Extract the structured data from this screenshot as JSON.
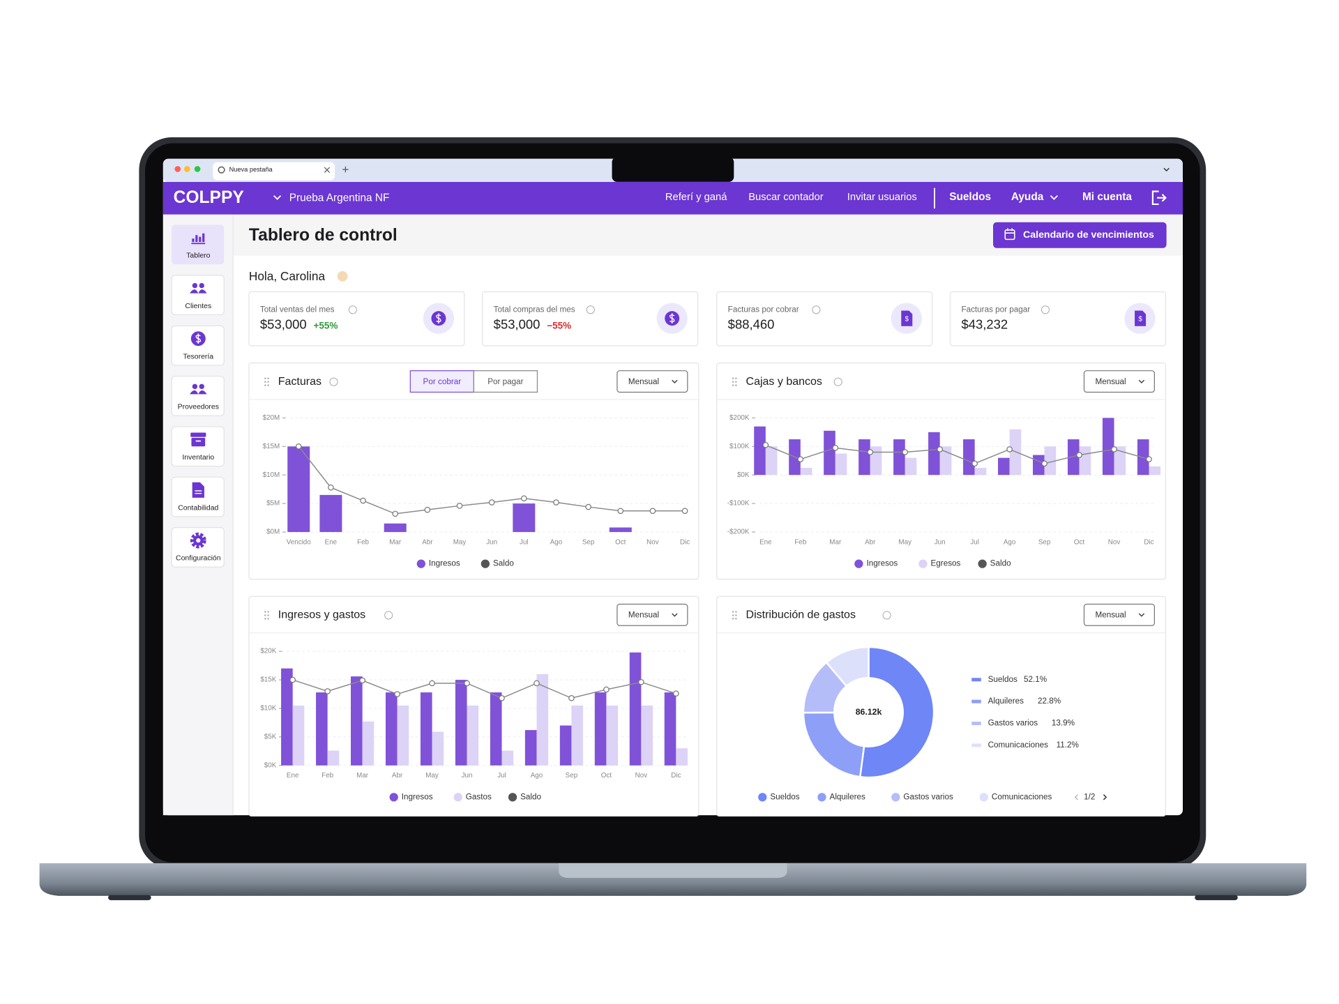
{
  "browser": {
    "tab": "Nueva pestaña"
  },
  "header": {
    "logo": "COLPPY",
    "company": "Prueba Argentina NF",
    "links": [
      "Referí y ganá",
      "Buscar contador",
      "Invitar usuarios"
    ],
    "sueldos": "Sueldos",
    "ayuda": "Ayuda",
    "account": "Mi cuenta"
  },
  "sidebar": [
    "Tablero",
    "Clientes",
    "Tesorería",
    "Proveedores",
    "Inventario",
    "Contabilidad",
    "Configuración"
  ],
  "page": {
    "title": "Tablero de control",
    "calendar_button": "Calendario de vencimientos",
    "greeting": "Hola, Carolina"
  },
  "kpis": [
    {
      "label": "Total ventas del mes",
      "value": "$53,000",
      "change": "+55%",
      "trend": "up"
    },
    {
      "label": "Total compras del mes",
      "value": "$53,000",
      "change": "−55%",
      "trend": "down"
    },
    {
      "label": "Facturas por cobrar",
      "value": "$88,460"
    },
    {
      "label": "Facturas por pagar",
      "value": "$43,232"
    }
  ],
  "chart_data": [
    {
      "type": "bar",
      "title": "Facturas",
      "tabs": [
        "Por cobrar",
        "Por pagar"
      ],
      "period": "Mensual",
      "categories": [
        "Vencido",
        "Ene",
        "Feb",
        "Mar",
        "Abr",
        "May",
        "Jun",
        "Jul",
        "Ago",
        "Sep",
        "Oct",
        "Nov",
        "Dic"
      ],
      "ylim": [
        0,
        20
      ],
      "yticks": [
        {
          "value": 0,
          "label": "$0M"
        },
        {
          "value": 5,
          "label": "$5M"
        },
        {
          "value": 10,
          "label": "$10M"
        },
        {
          "value": 15,
          "label": "$15M"
        },
        {
          "value": 20,
          "label": "$20M"
        }
      ],
      "grid": true,
      "series": [
        {
          "name": "Ingresos",
          "color": "#8052d8",
          "values": [
            15,
            6.5,
            0,
            1.5,
            0,
            0,
            0,
            5,
            0,
            0,
            0.8,
            0,
            0
          ]
        },
        {
          "name": "Saldo",
          "color": "#666666",
          "type": "line",
          "values": [
            15,
            7.8,
            5.5,
            3.2,
            3.9,
            4.6,
            5.2,
            5.9,
            5.2,
            4.4,
            3.7,
            3.7,
            3.7
          ]
        }
      ]
    },
    {
      "type": "bar",
      "title": "Cajas y bancos",
      "period": "Mensual",
      "categories": [
        "Ene",
        "Feb",
        "Mar",
        "Abr",
        "May",
        "Jun",
        "Jul",
        "Ago",
        "Sep",
        "Oct",
        "Nov",
        "Dic"
      ],
      "ylim": [
        -200,
        200
      ],
      "yticks": [
        {
          "value": -200,
          "label": "-$200K"
        },
        {
          "value": -100,
          "label": "-$100K"
        },
        {
          "value": 0,
          "label": "$0K"
        },
        {
          "value": 100,
          "label": "$100K"
        },
        {
          "value": 200,
          "label": "$200K"
        }
      ],
      "grid": true,
      "series": [
        {
          "name": "Ingresos",
          "color": "#8052d8",
          "values": [
            170,
            125,
            155,
            125,
            125,
            150,
            125,
            60,
            70,
            125,
            200,
            125
          ]
        },
        {
          "name": "Egresos",
          "color": "#dcd3f6",
          "values": [
            100,
            25,
            75,
            100,
            60,
            100,
            25,
            160,
            100,
            100,
            100,
            30
          ]
        },
        {
          "name": "Saldo",
          "color": "#666666",
          "type": "line",
          "values": [
            105,
            55,
            95,
            80,
            80,
            90,
            40,
            90,
            40,
            70,
            90,
            55
          ]
        }
      ]
    },
    {
      "type": "bar",
      "title": "Ingresos y gastos",
      "period": "Mensual",
      "categories": [
        "Ene",
        "Feb",
        "Mar",
        "Abr",
        "May",
        "Jun",
        "Jul",
        "Ago",
        "Sep",
        "Oct",
        "Nov",
        "Dic"
      ],
      "ylim": [
        0,
        20
      ],
      "yticks": [
        {
          "value": 0,
          "label": "$0K"
        },
        {
          "value": 5,
          "label": "$5K"
        },
        {
          "value": 10,
          "label": "$10K"
        },
        {
          "value": 15,
          "label": "$15K"
        },
        {
          "value": 20,
          "label": "$20K"
        }
      ],
      "grid": true,
      "series": [
        {
          "name": "Ingresos",
          "color": "#8052d8",
          "values": [
            17,
            12.8,
            15.6,
            12.8,
            12.8,
            15,
            12.8,
            6.2,
            7,
            12.8,
            19.8,
            12.8
          ]
        },
        {
          "name": "Gastos",
          "color": "#dcd3f6",
          "values": [
            10.5,
            2.6,
            7.7,
            10.5,
            5.9,
            10.5,
            2.6,
            16,
            10.5,
            10.5,
            10.5,
            3
          ]
        },
        {
          "name": "Saldo",
          "color": "#666666",
          "type": "line",
          "values": [
            15,
            13,
            14.9,
            12.5,
            14.4,
            14.4,
            11.8,
            14.4,
            11.8,
            13.3,
            14.6,
            12.6
          ]
        }
      ]
    },
    {
      "type": "donut",
      "title": "Distribución de gastos",
      "period": "Mensual",
      "center_label": "86.12k",
      "pager": "1/2",
      "categories": [
        "Sueldos",
        "Alquileres",
        "Gastos varios",
        "Comunicaciones"
      ],
      "values": [
        52.1,
        22.8,
        13.9,
        11.2
      ],
      "value_labels": [
        "52.1%",
        "22.8%",
        "13.9%",
        "11.2%"
      ],
      "colors": [
        "#6f86f6",
        "#8e9ff7",
        "#b4bdf8",
        "#dde0fa"
      ]
    }
  ]
}
